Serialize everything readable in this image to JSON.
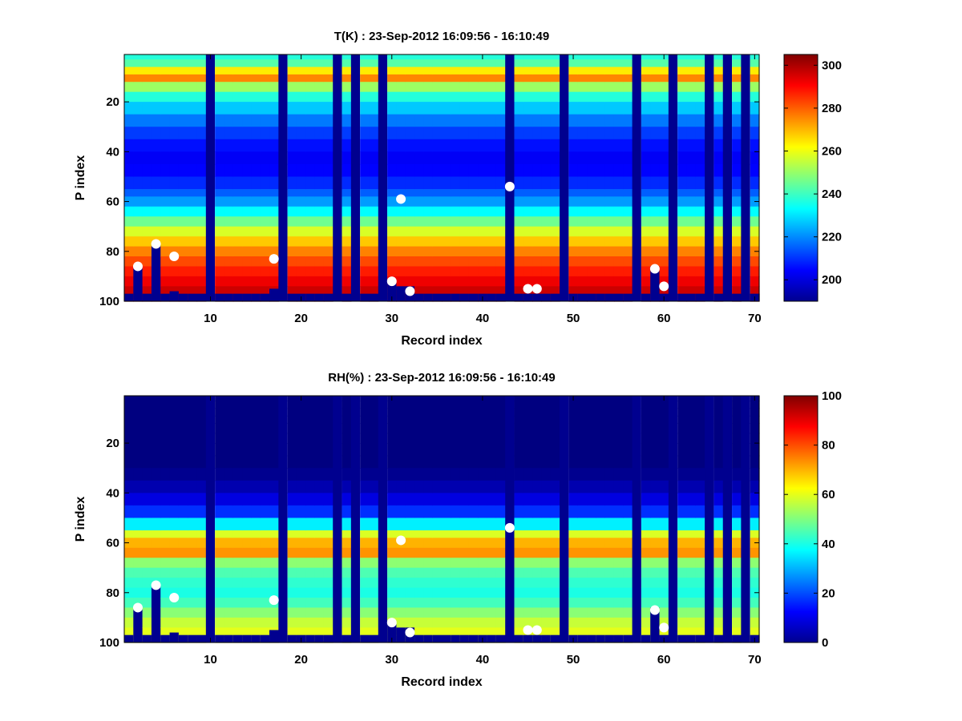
{
  "chart_data": [
    {
      "type": "heatmap",
      "title": "T(K) : 23-Sep-2012 16:09:56 - 16:10:49",
      "xlabel": "Record index",
      "ylabel": "P index",
      "xlim": [
        0.5,
        70.5
      ],
      "ylim": [
        1,
        100
      ],
      "y_reversed": true,
      "x_ticks": [
        10,
        20,
        30,
        40,
        50,
        60,
        70
      ],
      "y_ticks": [
        20,
        40,
        60,
        80,
        100
      ],
      "colormap": "jet",
      "clim": [
        190,
        305
      ],
      "colorbar_ticks": [
        200,
        220,
        240,
        260,
        280,
        300
      ],
      "fill_value_color": "#00008f",
      "profile": {
        "p_index": [
          1,
          5,
          8,
          10,
          12,
          15,
          20,
          25,
          30,
          35,
          40,
          45,
          50,
          55,
          60,
          65,
          70,
          75,
          80,
          85,
          90,
          95,
          100
        ],
        "value": [
          235,
          244,
          268,
          280,
          262,
          245,
          232,
          222,
          214,
          208,
          204,
          203,
          206,
          212,
          222,
          236,
          252,
          266,
          276,
          284,
          290,
          296,
          300
        ]
      },
      "gap_columns": [
        10,
        18,
        24,
        26,
        29,
        43,
        49,
        57,
        61,
        65,
        67,
        69
      ],
      "partial_columns": [
        {
          "record": 2,
          "bottom_from": 86
        },
        {
          "record": 4,
          "bottom_from": 77
        },
        {
          "record": 6,
          "bottom_from": 96
        },
        {
          "record": 17,
          "bottom_from": 95
        },
        {
          "record": 30,
          "bottom_from": 92
        },
        {
          "record": 31,
          "bottom_from": 94
        },
        {
          "record": 32,
          "bottom_from": 94
        },
        {
          "record": 43,
          "bottom_from": 86
        },
        {
          "record": 59,
          "bottom_from": 86
        }
      ],
      "markers": [
        {
          "x": 2,
          "y": 86
        },
        {
          "x": 4,
          "y": 77
        },
        {
          "x": 6,
          "y": 82
        },
        {
          "x": 17,
          "y": 83
        },
        {
          "x": 30,
          "y": 92
        },
        {
          "x": 31,
          "y": 59
        },
        {
          "x": 32,
          "y": 96
        },
        {
          "x": 43,
          "y": 54
        },
        {
          "x": 45,
          "y": 95
        },
        {
          "x": 46,
          "y": 95
        },
        {
          "x": 59,
          "y": 87
        },
        {
          "x": 60,
          "y": 94
        }
      ]
    },
    {
      "type": "heatmap",
      "title": "RH(%) : 23-Sep-2012 16:09:56 - 16:10:49",
      "xlabel": "Record index",
      "ylabel": "P index",
      "xlim": [
        0.5,
        70.5
      ],
      "ylim": [
        1,
        100
      ],
      "y_reversed": true,
      "x_ticks": [
        10,
        20,
        30,
        40,
        50,
        60,
        70
      ],
      "y_ticks": [
        20,
        40,
        60,
        80,
        100
      ],
      "colormap": "jet",
      "clim": [
        0,
        100
      ],
      "colorbar_ticks": [
        0,
        20,
        40,
        60,
        80,
        100
      ],
      "fill_value_color": "#00008f",
      "profile": {
        "p_index": [
          1,
          30,
          38,
          45,
          50,
          55,
          58,
          62,
          66,
          69,
          72,
          76,
          80,
          85,
          90,
          95,
          100
        ],
        "value": [
          0,
          0,
          5,
          12,
          22,
          50,
          68,
          72,
          74,
          40,
          45,
          42,
          40,
          45,
          55,
          60,
          60
        ]
      },
      "gap_columns": [
        10,
        18,
        24,
        26,
        29,
        43,
        49,
        57,
        61,
        65,
        67,
        69
      ],
      "partial_columns": [
        {
          "record": 2,
          "bottom_from": 86
        },
        {
          "record": 4,
          "bottom_from": 77
        },
        {
          "record": 6,
          "bottom_from": 96
        },
        {
          "record": 17,
          "bottom_from": 95
        },
        {
          "record": 30,
          "bottom_from": 92
        },
        {
          "record": 31,
          "bottom_from": 94
        },
        {
          "record": 32,
          "bottom_from": 94
        },
        {
          "record": 43,
          "bottom_from": 86
        },
        {
          "record": 59,
          "bottom_from": 86
        }
      ],
      "markers": [
        {
          "x": 2,
          "y": 86
        },
        {
          "x": 4,
          "y": 77
        },
        {
          "x": 6,
          "y": 82
        },
        {
          "x": 17,
          "y": 83
        },
        {
          "x": 30,
          "y": 92
        },
        {
          "x": 31,
          "y": 59
        },
        {
          "x": 32,
          "y": 96
        },
        {
          "x": 43,
          "y": 54
        },
        {
          "x": 45,
          "y": 95
        },
        {
          "x": 46,
          "y": 95
        },
        {
          "x": 59,
          "y": 87
        },
        {
          "x": 60,
          "y": 94
        }
      ]
    }
  ]
}
